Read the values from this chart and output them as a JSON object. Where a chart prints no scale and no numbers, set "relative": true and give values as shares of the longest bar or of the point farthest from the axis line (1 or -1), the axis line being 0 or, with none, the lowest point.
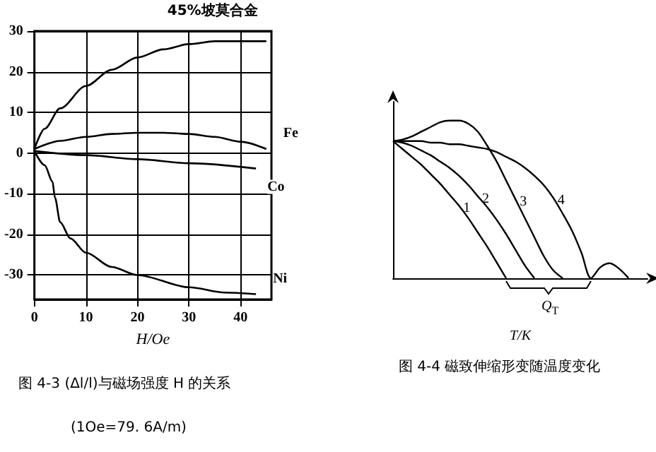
{
  "chart_data": [
    {
      "type": "line",
      "title": "图 4-3 (Δl/l)与磁场强度 H 的关系",
      "xlabel": "H/Oe",
      "annotations": [
        "(1Oe=79. 6A/m)"
      ],
      "xlim": [
        0,
        46
      ],
      "xticks": [
        0,
        10,
        20,
        30,
        40
      ],
      "ylim": [
        -36,
        30
      ],
      "yticks": [
        -30,
        -20,
        -10,
        0,
        10,
        20,
        30
      ],
      "grid": true,
      "series": [
        {
          "name": "45%坡莫合金",
          "color": "#000000",
          "x": [
            0,
            2,
            5,
            10,
            15,
            20,
            25,
            30,
            35,
            40,
            45
          ],
          "values": [
            1,
            6,
            11,
            16.5,
            20.5,
            23.5,
            25.5,
            26.8,
            27.5,
            27.5,
            27.5
          ]
        },
        {
          "name": "Fe",
          "color": "#000000",
          "x": [
            0,
            5,
            10,
            15,
            20,
            25,
            30,
            35,
            40,
            45
          ],
          "values": [
            1,
            3,
            4,
            4.7,
            5,
            5,
            4.7,
            4,
            2.8,
            1
          ]
        },
        {
          "name": "Co",
          "color": "#000000",
          "x": [
            0,
            10,
            20,
            30,
            43
          ],
          "values": [
            0.5,
            -0.5,
            -1.5,
            -2.5,
            -3.8
          ]
        },
        {
          "name": "Ni",
          "color": "#000000",
          "x": [
            0,
            2,
            3.5,
            4,
            5,
            7,
            10,
            15,
            20,
            30,
            37,
            43
          ],
          "values": [
            0.5,
            -3,
            -7,
            -11,
            -17,
            -21,
            -24.5,
            -28,
            -30,
            -33,
            -34.3,
            -34.7
          ]
        }
      ]
    },
    {
      "type": "line",
      "title": "图 4-4 磁致伸缩形变随温度变化",
      "xlabel": "T/K",
      "annotations": [
        "Q$_{T}$"
      ],
      "relative": true,
      "categories": [
        null,
        null,
        null,
        null,
        null,
        null,
        null,
        null,
        null,
        null,
        null,
        null,
        null,
        null,
        null,
        null,
        null,
        null,
        null,
        null,
        null,
        null,
        null,
        null,
        null,
        null,
        null,
        null
      ],
      "series": [
        {
          "name": "1",
          "color": "#000000",
          "values": [
            0.87,
            0.82,
            0.77,
            0.72,
            0.66,
            0.6,
            0.53,
            0.46,
            0.38,
            0.29,
            0.2,
            0.1,
            0,
            null,
            null,
            null,
            null,
            null,
            null,
            null,
            null,
            null,
            null,
            null,
            null,
            null,
            null,
            null
          ]
        },
        {
          "name": "2",
          "color": "#000000",
          "values": [
            0.87,
            0.86,
            0.84,
            0.81,
            0.78,
            0.74,
            0.7,
            0.65,
            0.59,
            0.52,
            0.45,
            0.37,
            0.28,
            0.18,
            0.08,
            0,
            null,
            null,
            null,
            null,
            null,
            null,
            null,
            null,
            null,
            null,
            null,
            null
          ]
        },
        {
          "name": "3",
          "color": "#000000",
          "values": [
            0.87,
            0.88,
            0.9,
            0.93,
            0.96,
            0.99,
            1,
            1,
            0.98,
            0.93,
            0.84,
            0.74,
            0.62,
            0.5,
            0.38,
            0.26,
            0.14,
            0.05,
            0,
            null,
            null,
            null,
            null,
            null,
            null,
            null,
            null,
            null
          ]
        },
        {
          "name": "4",
          "color": "#000000",
          "values": [
            0.87,
            0.87,
            0.87,
            0.87,
            0.86,
            0.86,
            0.85,
            0.85,
            0.84,
            0.83,
            0.82,
            0.8,
            0.77,
            0.74,
            0.7,
            0.65,
            0.59,
            0.51,
            0.41,
            0.3,
            0.16,
            0,
            0.07,
            0.095,
            0.06,
            0,
            null,
            null
          ]
        }
      ]
    }
  ]
}
